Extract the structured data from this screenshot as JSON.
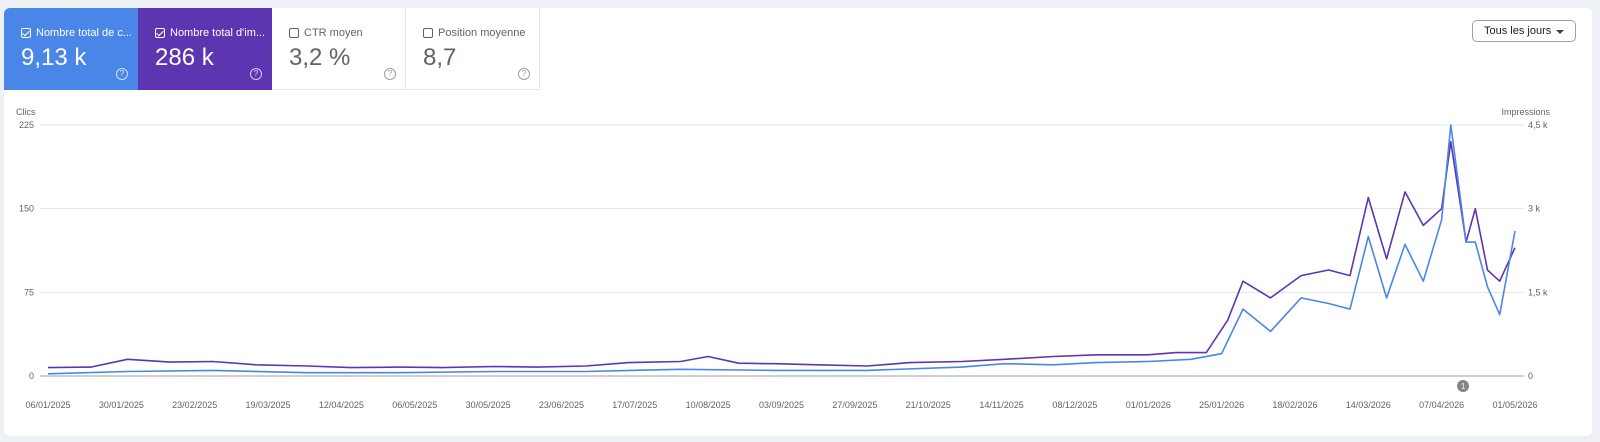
{
  "metrics": [
    {
      "label": "Nombre total de c...",
      "value": "9,13 k",
      "selected": true,
      "color": "#4a86e8"
    },
    {
      "label": "Nombre total d'im...",
      "value": "286 k",
      "selected": true,
      "color": "#5e35b1"
    },
    {
      "label": "CTR moyen",
      "value": "3,2 %",
      "selected": false
    },
    {
      "label": "Position moyenne",
      "value": "8,7",
      "selected": false
    }
  ],
  "help_glyph": "?",
  "dropdown": {
    "label": "Tous les jours"
  },
  "annotation": {
    "label": "1",
    "date": "2026-04-14"
  },
  "chart_data": {
    "type": "line",
    "x_range": [
      "2025-01-06",
      "2026-05-01"
    ],
    "x_ticks": [
      "06/01/2025",
      "30/01/2025",
      "23/02/2025",
      "19/03/2025",
      "12/04/2025",
      "06/05/2025",
      "30/05/2025",
      "23/06/2025",
      "17/07/2025",
      "10/08/2025",
      "03/09/2025",
      "27/09/2025",
      "21/10/2025",
      "14/11/2025",
      "08/12/2025",
      "01/01/2026",
      "25/01/2026",
      "18/02/2026",
      "14/03/2026",
      "07/04/2026",
      "01/05/2026"
    ],
    "y_left": {
      "label": "Clics",
      "range": [
        0,
        225
      ],
      "ticks": [
        "0",
        "75",
        "150",
        "225"
      ]
    },
    "y_right": {
      "label": "Impressions",
      "range": [
        0,
        4500
      ],
      "ticks": [
        "0",
        "1,5 k",
        "3 k",
        "4,5 k"
      ]
    },
    "grid": true,
    "series": [
      {
        "axis": "right",
        "color": "#5e35b1",
        "points": [
          [
            "2025-01-06",
            150
          ],
          [
            "2025-01-20",
            160
          ],
          [
            "2025-02-01",
            300
          ],
          [
            "2025-02-15",
            250
          ],
          [
            "2025-03-01",
            260
          ],
          [
            "2025-03-15",
            200
          ],
          [
            "2025-04-01",
            180
          ],
          [
            "2025-04-15",
            150
          ],
          [
            "2025-05-01",
            160
          ],
          [
            "2025-05-15",
            150
          ],
          [
            "2025-06-01",
            170
          ],
          [
            "2025-06-15",
            160
          ],
          [
            "2025-07-01",
            180
          ],
          [
            "2025-07-15",
            240
          ],
          [
            "2025-08-01",
            260
          ],
          [
            "2025-08-10",
            350
          ],
          [
            "2025-08-20",
            230
          ],
          [
            "2025-09-01",
            220
          ],
          [
            "2025-09-15",
            200
          ],
          [
            "2025-10-01",
            180
          ],
          [
            "2025-10-15",
            240
          ],
          [
            "2025-11-01",
            260
          ],
          [
            "2025-11-15",
            300
          ],
          [
            "2025-12-01",
            350
          ],
          [
            "2025-12-15",
            380
          ],
          [
            "2026-01-01",
            380
          ],
          [
            "2026-01-10",
            420
          ],
          [
            "2026-01-20",
            420
          ],
          [
            "2026-01-27",
            1000
          ],
          [
            "2026-02-01",
            1700
          ],
          [
            "2026-02-10",
            1400
          ],
          [
            "2026-02-20",
            1800
          ],
          [
            "2026-03-01",
            1900
          ],
          [
            "2026-03-08",
            1800
          ],
          [
            "2026-03-14",
            3200
          ],
          [
            "2026-03-20",
            2100
          ],
          [
            "2026-03-26",
            3300
          ],
          [
            "2026-04-01",
            2700
          ],
          [
            "2026-04-07",
            3000
          ],
          [
            "2026-04-10",
            4200
          ],
          [
            "2026-04-15",
            2400
          ],
          [
            "2026-04-18",
            3000
          ],
          [
            "2026-04-22",
            1900
          ],
          [
            "2026-04-26",
            1700
          ],
          [
            "2026-05-01",
            2300
          ]
        ]
      },
      {
        "axis": "left",
        "color": "#4a86e8",
        "points": [
          [
            "2025-01-06",
            2
          ],
          [
            "2025-02-01",
            4
          ],
          [
            "2025-03-01",
            5
          ],
          [
            "2025-04-01",
            3
          ],
          [
            "2025-05-01",
            3
          ],
          [
            "2025-06-01",
            4
          ],
          [
            "2025-07-01",
            4
          ],
          [
            "2025-08-01",
            6
          ],
          [
            "2025-09-01",
            5
          ],
          [
            "2025-10-01",
            5
          ],
          [
            "2025-11-01",
            8
          ],
          [
            "2025-11-15",
            11
          ],
          [
            "2025-12-01",
            10
          ],
          [
            "2025-12-15",
            12
          ],
          [
            "2026-01-01",
            13
          ],
          [
            "2026-01-15",
            15
          ],
          [
            "2026-01-25",
            20
          ],
          [
            "2026-02-01",
            60
          ],
          [
            "2026-02-10",
            40
          ],
          [
            "2026-02-20",
            70
          ],
          [
            "2026-03-01",
            65
          ],
          [
            "2026-03-08",
            60
          ],
          [
            "2026-03-14",
            125
          ],
          [
            "2026-03-20",
            70
          ],
          [
            "2026-03-26",
            118
          ],
          [
            "2026-04-01",
            85
          ],
          [
            "2026-04-07",
            140
          ],
          [
            "2026-04-10",
            225
          ],
          [
            "2026-04-15",
            120
          ],
          [
            "2026-04-18",
            120
          ],
          [
            "2026-04-22",
            80
          ],
          [
            "2026-04-26",
            55
          ],
          [
            "2026-05-01",
            130
          ]
        ]
      }
    ]
  }
}
